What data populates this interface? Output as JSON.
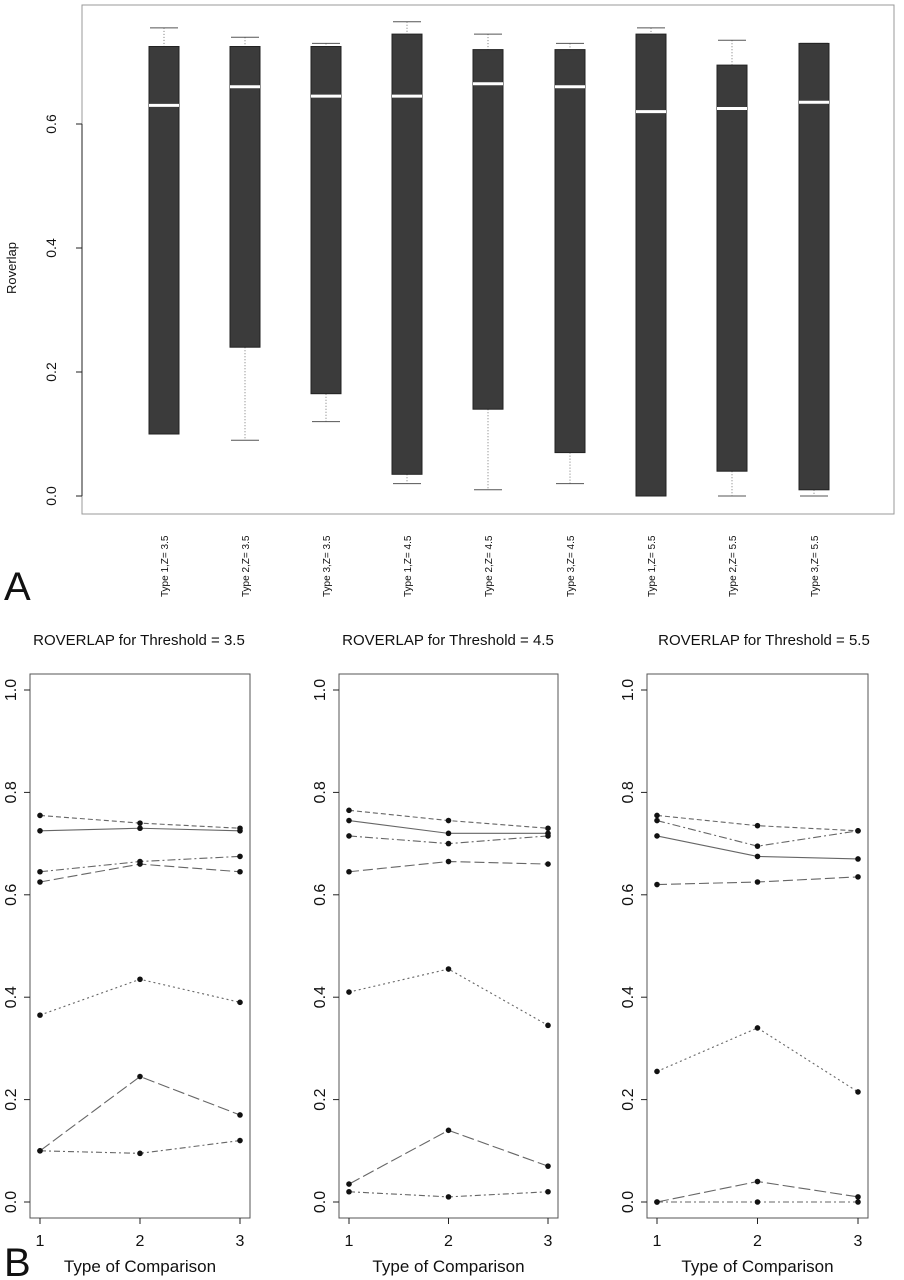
{
  "figure": {
    "panel_a_letter": "A",
    "panel_b_letter": "B"
  },
  "chart_data": [
    {
      "type": "box",
      "panel": "A",
      "ylabel": "Roverlap",
      "ylim": [
        0,
        0.78
      ],
      "yticks": [
        0.0,
        0.2,
        0.4,
        0.6
      ],
      "grid": false,
      "categories": [
        "Type 1,Z= 3.5",
        "Type 2,Z= 3.5",
        "Type 3,Z= 3.5",
        "Type 1,Z= 4.5",
        "Type 2,Z= 4.5",
        "Type 3,Z= 4.5",
        "Type 1,Z= 5.5",
        "Type 2,Z= 5.5",
        "Type 3,Z= 5.5"
      ],
      "boxes": [
        {
          "whisker_low": 0.1,
          "q1": 0.1,
          "median": 0.63,
          "q3": 0.725,
          "whisker_high": 0.755
        },
        {
          "whisker_low": 0.09,
          "q1": 0.24,
          "median": 0.66,
          "q3": 0.725,
          "whisker_high": 0.74
        },
        {
          "whisker_low": 0.12,
          "q1": 0.165,
          "median": 0.645,
          "q3": 0.725,
          "whisker_high": 0.73
        },
        {
          "whisker_low": 0.02,
          "q1": 0.035,
          "median": 0.645,
          "q3": 0.745,
          "whisker_high": 0.765
        },
        {
          "whisker_low": 0.01,
          "q1": 0.14,
          "median": 0.665,
          "q3": 0.72,
          "whisker_high": 0.745
        },
        {
          "whisker_low": 0.02,
          "q1": 0.07,
          "median": 0.66,
          "q3": 0.72,
          "whisker_high": 0.73
        },
        {
          "whisker_low": 0.0,
          "q1": 0.0,
          "median": 0.62,
          "q3": 0.745,
          "whisker_high": 0.755
        },
        {
          "whisker_low": 0.0,
          "q1": 0.04,
          "median": 0.625,
          "q3": 0.695,
          "whisker_high": 0.735
        },
        {
          "whisker_low": 0.0,
          "q1": 0.01,
          "median": 0.635,
          "q3": 0.73,
          "whisker_high": 0.73
        }
      ]
    },
    {
      "type": "line",
      "panel": "B",
      "title": "ROVERLAP for Threshold = 3.5",
      "xlabel": "Type of Comparison",
      "x": [
        1,
        2,
        3
      ],
      "ylim": [
        0,
        1.0
      ],
      "yticks": [
        0.0,
        0.2,
        0.4,
        0.6,
        0.8,
        1.0
      ],
      "series": [
        {
          "values": [
            0.755,
            0.74,
            0.73
          ],
          "dash": "5,3"
        },
        {
          "values": [
            0.725,
            0.73,
            0.725
          ],
          "dash": ""
        },
        {
          "values": [
            0.645,
            0.665,
            0.675
          ],
          "dash": "8,3,2,3"
        },
        {
          "values": [
            0.625,
            0.66,
            0.645
          ],
          "dash": "10,4"
        },
        {
          "values": [
            0.365,
            0.435,
            0.39
          ],
          "dash": "2,3"
        },
        {
          "values": [
            0.1,
            0.245,
            0.17
          ],
          "dash": "12,4"
        },
        {
          "values": [
            0.1,
            0.095,
            0.12
          ],
          "dash": "6,3,2,3"
        }
      ]
    },
    {
      "type": "line",
      "panel": "B",
      "title": "ROVERLAP for Threshold = 4.5",
      "xlabel": "Type of Comparison",
      "x": [
        1,
        2,
        3
      ],
      "ylim": [
        0,
        1.0
      ],
      "yticks": [
        0.0,
        0.2,
        0.4,
        0.6,
        0.8,
        1.0
      ],
      "series": [
        {
          "values": [
            0.765,
            0.745,
            0.73
          ],
          "dash": "5,3"
        },
        {
          "values": [
            0.745,
            0.72,
            0.72
          ],
          "dash": ""
        },
        {
          "values": [
            0.715,
            0.7,
            0.715
          ],
          "dash": "8,3,2,3"
        },
        {
          "values": [
            0.645,
            0.665,
            0.66
          ],
          "dash": "10,4"
        },
        {
          "values": [
            0.41,
            0.455,
            0.345
          ],
          "dash": "2,3"
        },
        {
          "values": [
            0.035,
            0.14,
            0.07
          ],
          "dash": "12,4"
        },
        {
          "values": [
            0.02,
            0.01,
            0.02
          ],
          "dash": "6,3,2,3"
        }
      ]
    },
    {
      "type": "line",
      "panel": "B",
      "title": "ROVERLAP for Threshold = 5.5",
      "xlabel": "Type of Comparison",
      "x": [
        1,
        2,
        3
      ],
      "ylim": [
        0,
        1.0
      ],
      "yticks": [
        0.0,
        0.2,
        0.4,
        0.6,
        0.8,
        1.0
      ],
      "series": [
        {
          "values": [
            0.755,
            0.735,
            0.725
          ],
          "dash": "5,3"
        },
        {
          "values": [
            0.745,
            0.695,
            0.725
          ],
          "dash": "8,3,2,3"
        },
        {
          "values": [
            0.715,
            0.675,
            0.67
          ],
          "dash": ""
        },
        {
          "values": [
            0.62,
            0.625,
            0.635
          ],
          "dash": "10,4"
        },
        {
          "values": [
            0.255,
            0.34,
            0.215
          ],
          "dash": "2,3"
        },
        {
          "values": [
            0.0,
            0.04,
            0.01
          ],
          "dash": "12,4"
        },
        {
          "values": [
            0.0,
            0.0,
            0.0
          ],
          "dash": "6,3,2,3"
        }
      ]
    }
  ]
}
